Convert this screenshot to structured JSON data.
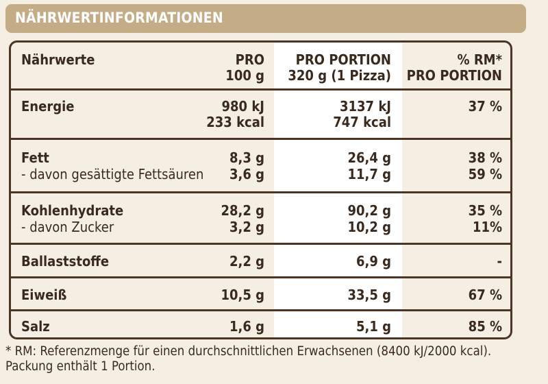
{
  "title": "NÄHRWERTINFORMATIONEN",
  "columns": {
    "nutrient": "Nährwerte",
    "per100_line1": "PRO",
    "per100_line2": "100 g",
    "portion_line1": "PRO PORTION",
    "portion_line2": "320 g (1 Pizza)",
    "rm_line1": "% RM*",
    "rm_line2": "PRO PORTION"
  },
  "rows": {
    "energie": {
      "label": "Energie",
      "per100_kj": "980 kJ",
      "per100_kcal": "233 kcal",
      "portion_kj": "3137 kJ",
      "portion_kcal": "747 kcal",
      "rm": "37 %"
    },
    "fett": {
      "label": "Fett",
      "per100": "8,3 g",
      "portion": "26,4 g",
      "rm": "38 %"
    },
    "fettsaeuren": {
      "label": "- davon gesättigte Fettsäuren",
      "per100": "3,6 g",
      "portion": "11,7 g",
      "rm": "59 %"
    },
    "kohlenhydrate": {
      "label": "Kohlenhydrate",
      "per100": "28,2 g",
      "portion": "90,2 g",
      "rm": "35 %"
    },
    "zucker": {
      "label": "- davon Zucker",
      "per100": "3,2 g",
      "portion": "10,2 g",
      "rm": "11%"
    },
    "ballaststoffe": {
      "label": "Ballaststoffe",
      "per100": "2,2 g",
      "portion": "6,9 g",
      "rm": "-"
    },
    "eiweiss": {
      "label": "Eiweiß",
      "per100": "10,5 g",
      "portion": "33,5 g",
      "rm": "67 %"
    },
    "salz": {
      "label": "Salz",
      "per100": "1,6 g",
      "portion": "5,1 g",
      "rm": "85 %"
    }
  },
  "footnote": {
    "line1": "* RM: Referenzmenge für einen durchschnittlichen Erwachsenen (8400 kJ/2000 kcal).",
    "line2": "Packung enthält 1 Portion."
  }
}
